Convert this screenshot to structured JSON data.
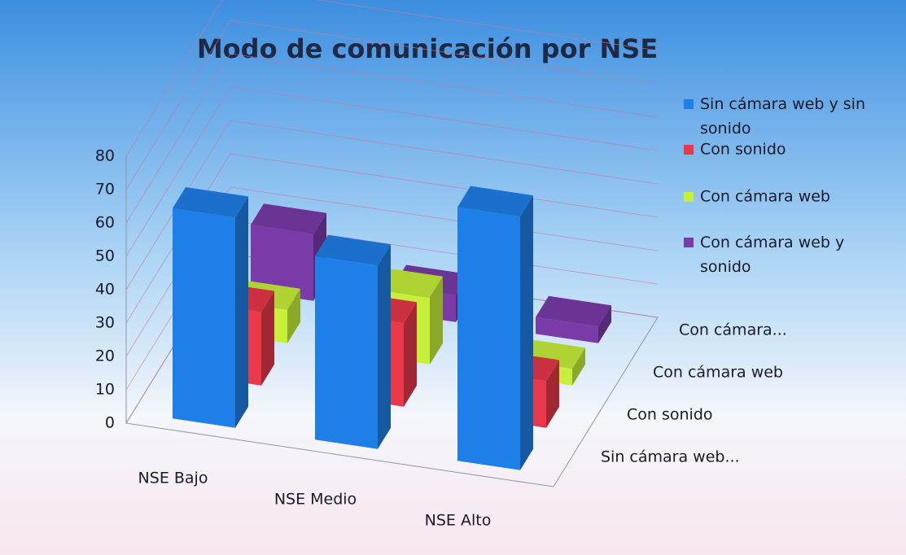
{
  "chart_data": {
    "type": "bar3d",
    "title": "Modo de comunicación por NSE",
    "categories": [
      "NSE Bajo",
      "NSE Medio",
      "NSE Alto"
    ],
    "depth_labels": [
      "Sin cámara web...",
      "Con sonido",
      "Con cámara web",
      "Con cámara..."
    ],
    "series": [
      {
        "name": "Sin cámara web y sin sonido",
        "color": "#1f7fe8",
        "values": [
          63,
          55,
          76
        ]
      },
      {
        "name": "Con sonido",
        "color": "#e8384a",
        "values": [
          22,
          25,
          14
        ]
      },
      {
        "name": "Con cámara web",
        "color": "#c6f03a",
        "values": [
          10,
          20,
          5
        ]
      },
      {
        "name": "Con cámara web y sonido",
        "color": "#7a3aa8",
        "values": [
          20,
          8,
          5
        ]
      }
    ],
    "ylim": [
      0,
      80
    ],
    "yticks": [
      0,
      10,
      20,
      30,
      40,
      50,
      60,
      70,
      80
    ],
    "grid": true,
    "legend": "right"
  }
}
